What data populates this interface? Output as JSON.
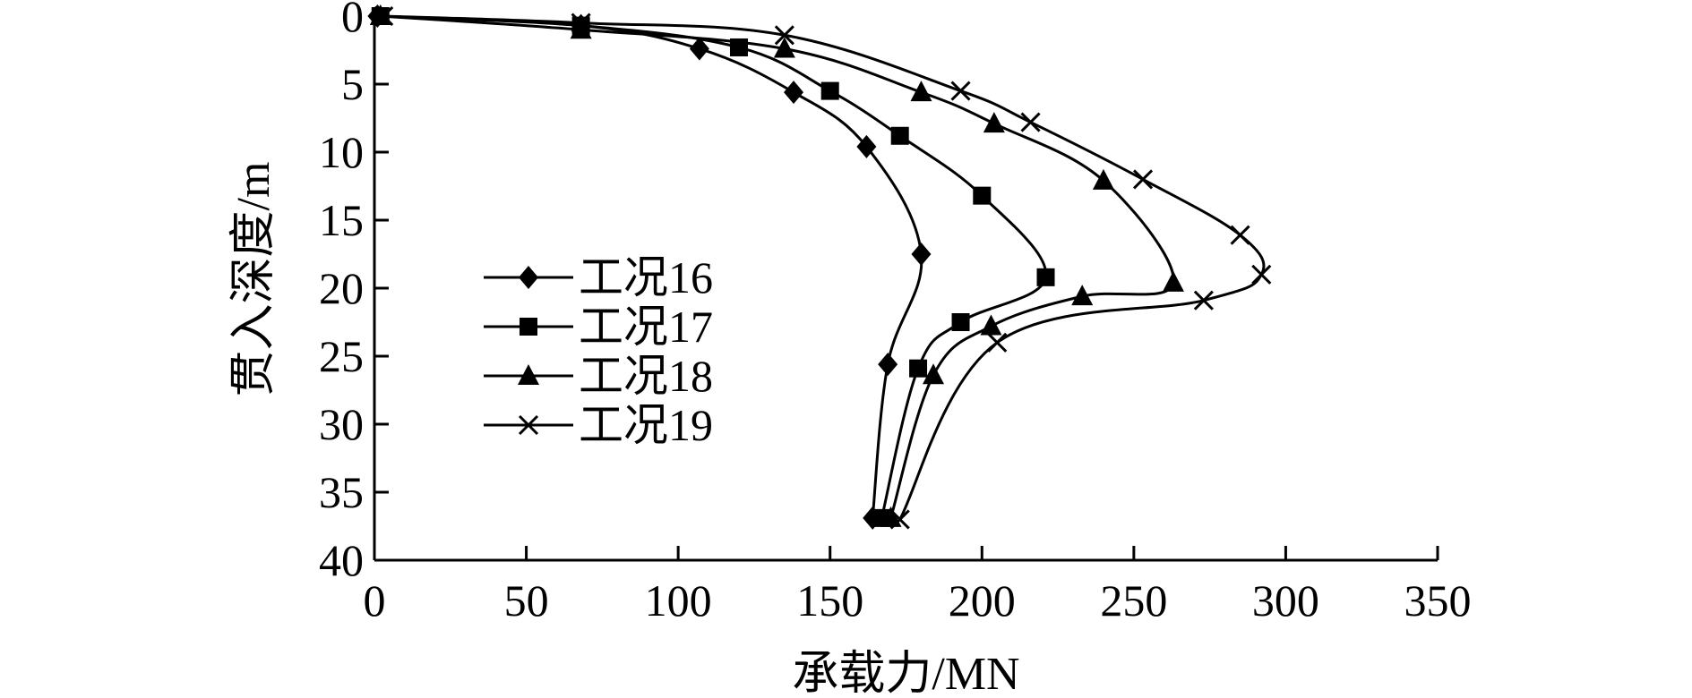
{
  "chart_data": {
    "type": "line",
    "title": "",
    "xlabel": "承载力/MN",
    "ylabel": "贯入深度/m",
    "xlim": [
      0,
      350
    ],
    "ylim": [
      0,
      40
    ],
    "y_inverted": true,
    "x_ticks": [
      0,
      50,
      100,
      150,
      200,
      250,
      300,
      350
    ],
    "y_ticks": [
      0,
      5,
      10,
      15,
      20,
      25,
      30,
      35,
      40
    ],
    "grid": false,
    "legend_position": "left-center",
    "series": [
      {
        "name": "工况16",
        "marker": "diamond",
        "color": "#000000",
        "points": [
          [
            1,
            0
          ],
          [
            68,
            0.7
          ],
          [
            107,
            2.4
          ],
          [
            138,
            5.6
          ],
          [
            162,
            9.6
          ],
          [
            180,
            17.5
          ],
          [
            169,
            25.6
          ],
          [
            164,
            36.9
          ]
        ]
      },
      {
        "name": "工况17",
        "marker": "square",
        "color": "#000000",
        "points": [
          [
            2,
            0
          ],
          [
            68,
            0.7
          ],
          [
            120,
            2.3
          ],
          [
            150,
            5.5
          ],
          [
            173,
            8.8
          ],
          [
            200,
            13.2
          ],
          [
            221,
            19.2
          ],
          [
            193,
            22.5
          ],
          [
            179,
            25.9
          ],
          [
            167,
            36.9
          ]
        ]
      },
      {
        "name": "工况18",
        "marker": "triangle",
        "color": "#000000",
        "points": [
          [
            2,
            0
          ],
          [
            68,
            1.0
          ],
          [
            135,
            2.4
          ],
          [
            180,
            5.6
          ],
          [
            204,
            7.9
          ],
          [
            240,
            12.1
          ],
          [
            263,
            19.6
          ],
          [
            233,
            20.6
          ],
          [
            203,
            22.8
          ],
          [
            184,
            26.4
          ],
          [
            170,
            36.9
          ]
        ]
      },
      {
        "name": "工况19",
        "marker": "x",
        "color": "#000000",
        "points": [
          [
            3,
            0
          ],
          [
            68,
            0.5
          ],
          [
            135,
            1.4
          ],
          [
            193,
            5.5
          ],
          [
            216,
            7.8
          ],
          [
            253,
            12.0
          ],
          [
            285,
            16.1
          ],
          [
            292,
            19.0
          ],
          [
            273,
            20.9
          ],
          [
            205,
            24.0
          ],
          [
            173,
            37.0
          ]
        ]
      }
    ]
  }
}
